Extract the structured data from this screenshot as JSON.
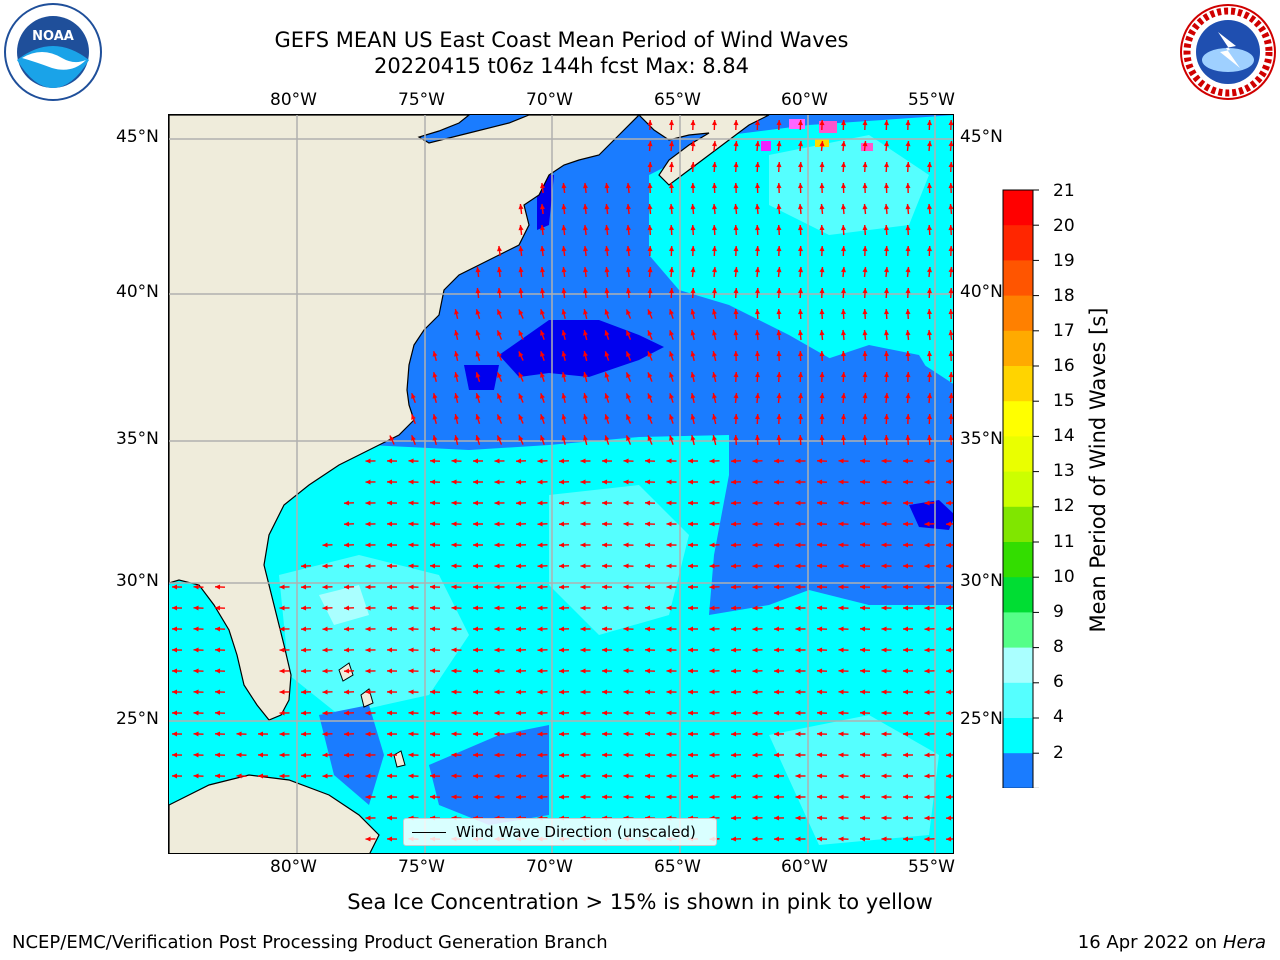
{
  "title": {
    "line1": "GEFS MEAN US East Coast Mean Period of Wind Waves",
    "line2": "20220415 t06z 144h fcst   Max: 8.84"
  },
  "logos": {
    "left": "noaa-logo",
    "left_text": "NOAA",
    "right": "nws-logo"
  },
  "map": {
    "lon_labels_top": [
      "80°W",
      "75°W",
      "70°W",
      "65°W",
      "60°W",
      "55°W"
    ],
    "lon_labels_bottom": [
      "80°W",
      "75°W",
      "70°W",
      "65°W",
      "60°W",
      "55°W"
    ],
    "lat_labels_left": [
      "45°N",
      "40°N",
      "35°N",
      "30°N",
      "25°N"
    ],
    "lat_labels_right": [
      "45°N",
      "40°N",
      "35°N",
      "30°N",
      "25°N"
    ],
    "legend_label": "Wind Wave Direction (unscaled)",
    "colors": {
      "land": "#efecdb",
      "arrow": "#ff0000",
      "grid": "#b0b0b0"
    }
  },
  "colorbar": {
    "title": "Mean Period of Wind Waves [s]",
    "ticks": [
      "21",
      "20",
      "19",
      "18",
      "17",
      "16",
      "15",
      "14",
      "13",
      "12",
      "11",
      "10",
      "9",
      "8",
      "6",
      "4",
      "2"
    ],
    "colors_top_to_bottom": [
      "#ff0000",
      "#ff2600",
      "#ff5500",
      "#ff8000",
      "#ffaa00",
      "#ffd400",
      "#ffff00",
      "#eaff00",
      "#ccff00",
      "#80e600",
      "#33dd00",
      "#00dd33",
      "#55ff88",
      "#aaffff",
      "#55ffff",
      "#00ffff",
      "#1a7cff"
    ],
    "under_color": "#0000ff"
  },
  "footer": {
    "note": "Sea Ice Concentration > 15% is shown in pink to yellow",
    "left": "NCEP/EMC/Verification Post Processing Product Generation Branch",
    "right_date": "16 Apr 2022 on ",
    "right_machine": "Hera"
  }
}
